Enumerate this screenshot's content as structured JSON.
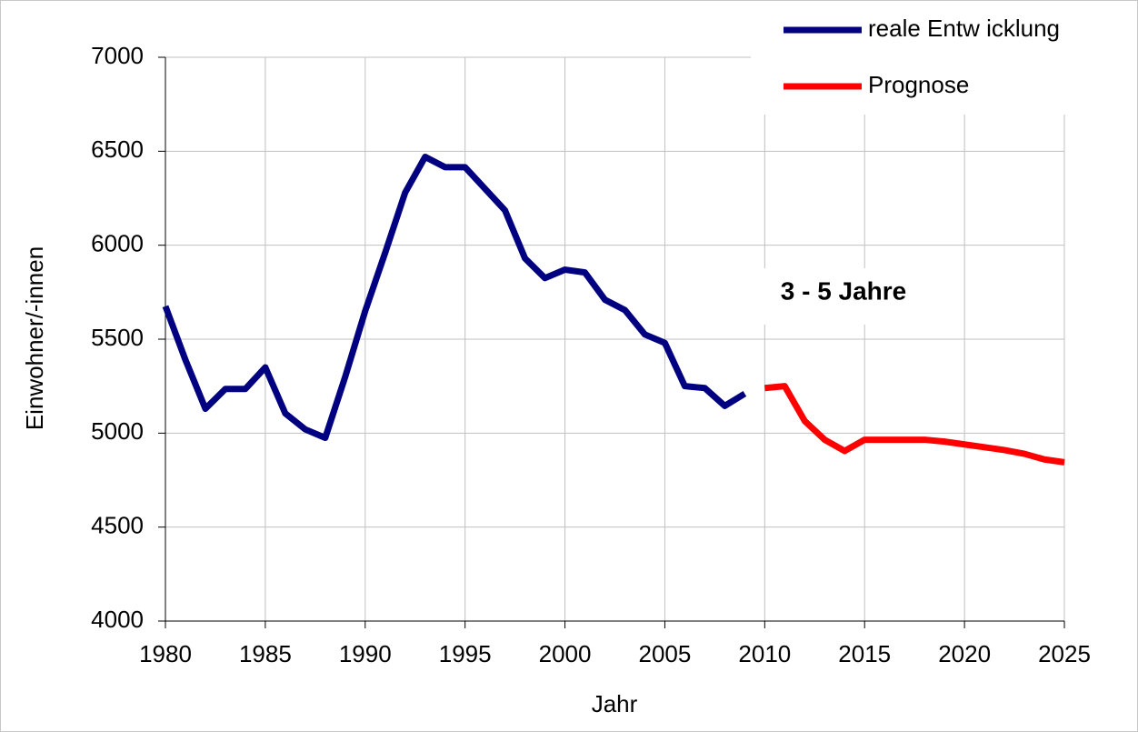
{
  "chart_data": {
    "type": "line",
    "x": [
      1980,
      1981,
      1982,
      1983,
      1984,
      1985,
      1986,
      1987,
      1988,
      1989,
      1990,
      1991,
      1992,
      1993,
      1994,
      1995,
      1996,
      1997,
      1998,
      1999,
      2000,
      2001,
      2002,
      2003,
      2004,
      2005,
      2006,
      2007,
      2008,
      2009,
      2010,
      2011,
      2012,
      2013,
      2014,
      2015,
      2016,
      2017,
      2018,
      2019,
      2020,
      2021,
      2022,
      2023,
      2024,
      2025
    ],
    "series": [
      {
        "name": "reale Entw icklung",
        "color": "#000080",
        "values": [
          5675,
          5390,
          5130,
          5235,
          5235,
          5350,
          5105,
          5020,
          4975,
          5300,
          5650,
          5960,
          6280,
          6470,
          6415,
          6415,
          6300,
          6185,
          5930,
          5825,
          5870,
          5855,
          5710,
          5655,
          5525,
          5480,
          5250,
          5240,
          5145,
          5210,
          null,
          null,
          null,
          null,
          null,
          null,
          null,
          null,
          null,
          null,
          null,
          null,
          null,
          null,
          null,
          null
        ]
      },
      {
        "name": "Prognose",
        "color": "#ff0000",
        "values": [
          null,
          null,
          null,
          null,
          null,
          null,
          null,
          null,
          null,
          null,
          null,
          null,
          null,
          null,
          null,
          null,
          null,
          null,
          null,
          null,
          null,
          null,
          null,
          null,
          null,
          null,
          null,
          null,
          null,
          null,
          5240,
          5250,
          5065,
          4965,
          4905,
          4965,
          4965,
          4965,
          4965,
          4955,
          4940,
          4925,
          4910,
          4890,
          4860,
          4845
        ]
      }
    ],
    "xlim": [
      1980,
      2025
    ],
    "xticks": [
      1980,
      1985,
      1990,
      1995,
      2000,
      2005,
      2010,
      2015,
      2020,
      2025
    ],
    "ylim": [
      4000,
      7000
    ],
    "yticks": [
      4000,
      4500,
      5000,
      5500,
      6000,
      6500,
      7000
    ],
    "xlabel": "Jahr",
    "ylabel": "Einwohner/-innen",
    "grid": true,
    "annotation": "3 - 5 Jahre",
    "legend": "upper right"
  }
}
